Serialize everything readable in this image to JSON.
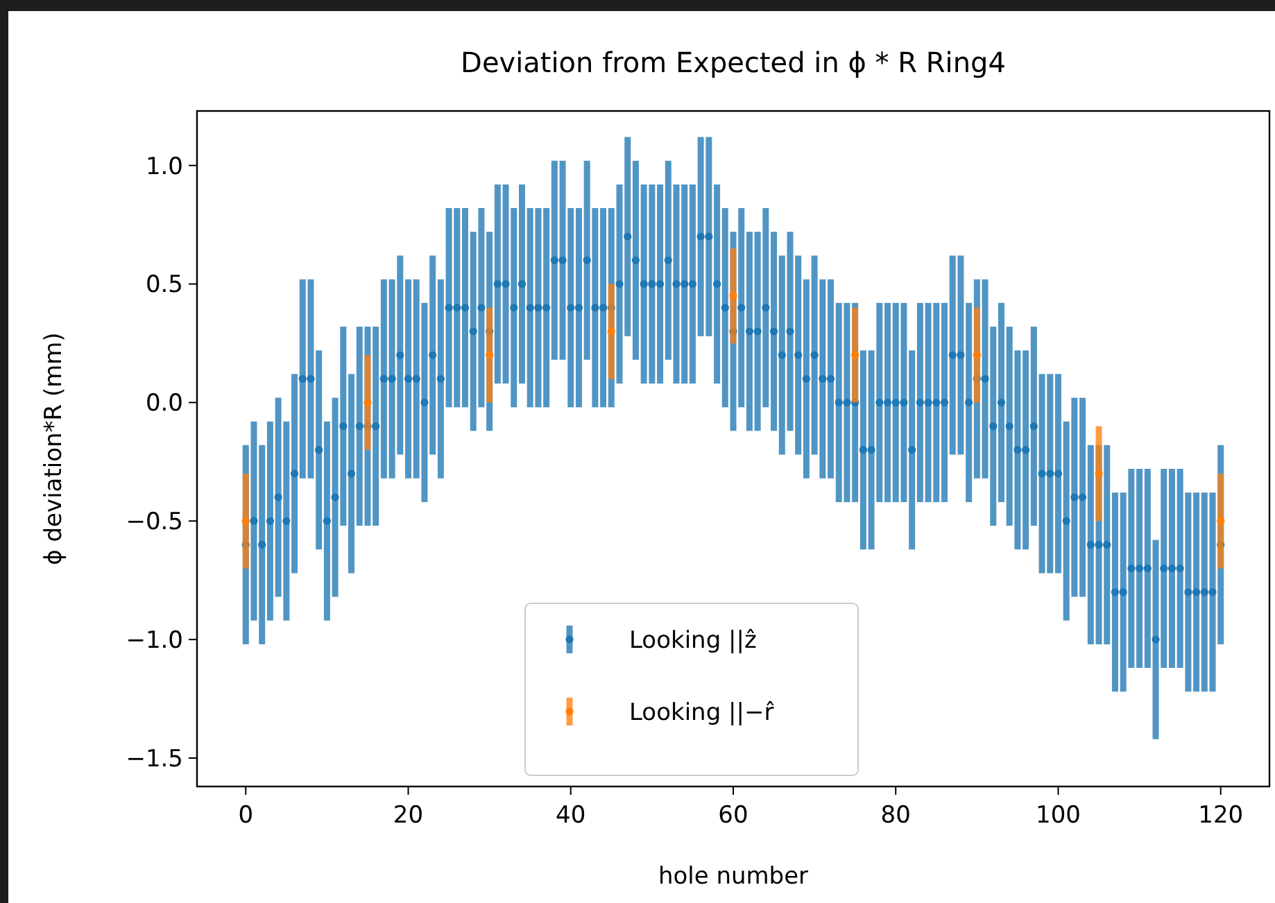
{
  "chart_data": {
    "type": "scatter",
    "title": "Deviation from Expected in ϕ * R Ring4",
    "xlabel": "hole number",
    "ylabel": "ϕ deviation*R (mm)",
    "xlim": [
      -6,
      126
    ],
    "ylim": [
      -1.62,
      1.23
    ],
    "xticks": [
      0,
      20,
      40,
      60,
      80,
      100,
      120
    ],
    "yticks": [
      {
        "value": -1.5,
        "label": "−1.5"
      },
      {
        "value": -1.0,
        "label": "−1.0"
      },
      {
        "value": -0.5,
        "label": "−0.5"
      },
      {
        "value": 0.0,
        "label": "0.0"
      },
      {
        "value": 0.5,
        "label": "0.5"
      },
      {
        "value": 1.0,
        "label": "1.0"
      }
    ],
    "legend": "bottom",
    "marker": "circle",
    "series": [
      {
        "name": "Looking ||ẑ",
        "color": "#1f77b4",
        "x": [
          0,
          1,
          2,
          3,
          4,
          5,
          6,
          7,
          8,
          9,
          10,
          11,
          12,
          13,
          14,
          15,
          16,
          17,
          18,
          19,
          20,
          21,
          22,
          23,
          24,
          25,
          26,
          27,
          28,
          29,
          30,
          31,
          32,
          33,
          34,
          35,
          36,
          37,
          38,
          39,
          40,
          41,
          42,
          43,
          44,
          45,
          46,
          47,
          48,
          49,
          50,
          51,
          52,
          53,
          54,
          55,
          56,
          57,
          58,
          59,
          60,
          61,
          62,
          63,
          64,
          65,
          66,
          67,
          68,
          69,
          70,
          71,
          72,
          73,
          74,
          75,
          76,
          77,
          78,
          79,
          80,
          81,
          82,
          83,
          84,
          85,
          86,
          87,
          88,
          89,
          90,
          91,
          92,
          93,
          94,
          95,
          96,
          97,
          98,
          99,
          100,
          101,
          102,
          103,
          104,
          105,
          106,
          107,
          108,
          109,
          110,
          111,
          112,
          113,
          114,
          115,
          116,
          117,
          118,
          119,
          120
        ],
        "values": [
          -0.6,
          -0.5,
          -0.6,
          -0.5,
          -0.4,
          -0.5,
          -0.3,
          0.1,
          0.1,
          -0.2,
          -0.5,
          -0.4,
          -0.1,
          -0.3,
          -0.1,
          -0.1,
          -0.1,
          0.1,
          0.1,
          0.2,
          0.1,
          0.1,
          0.0,
          0.2,
          0.1,
          0.4,
          0.4,
          0.4,
          0.3,
          0.4,
          0.3,
          0.5,
          0.5,
          0.4,
          0.5,
          0.4,
          0.4,
          0.4,
          0.6,
          0.6,
          0.4,
          0.4,
          0.6,
          0.4,
          0.4,
          0.4,
          0.5,
          0.7,
          0.6,
          0.5,
          0.5,
          0.5,
          0.6,
          0.5,
          0.5,
          0.5,
          0.7,
          0.7,
          0.5,
          0.4,
          0.3,
          0.4,
          0.3,
          0.3,
          0.4,
          0.3,
          0.2,
          0.3,
          0.2,
          0.1,
          0.2,
          0.1,
          0.1,
          0.0,
          0.0,
          0.0,
          -0.2,
          -0.2,
          0.0,
          0.0,
          0.0,
          0.0,
          -0.2,
          0.0,
          0.0,
          0.0,
          0.0,
          0.2,
          0.2,
          0.0,
          0.1,
          0.1,
          -0.1,
          0.0,
          -0.1,
          -0.2,
          -0.2,
          -0.1,
          -0.3,
          -0.3,
          -0.3,
          -0.5,
          -0.4,
          -0.4,
          -0.6,
          -0.6,
          -0.6,
          -0.8,
          -0.8,
          -0.7,
          -0.7,
          -0.7,
          -1.0,
          -0.7,
          -0.7,
          -0.7,
          -0.8,
          -0.8,
          -0.8,
          -0.8,
          -0.6
        ],
        "errors": [
          0.42,
          0.42,
          0.42,
          0.42,
          0.42,
          0.42,
          0.42,
          0.42,
          0.42,
          0.42,
          0.42,
          0.42,
          0.42,
          0.42,
          0.42,
          0.42,
          0.42,
          0.42,
          0.42,
          0.42,
          0.42,
          0.42,
          0.42,
          0.42,
          0.42,
          0.42,
          0.42,
          0.42,
          0.42,
          0.42,
          0.42,
          0.42,
          0.42,
          0.42,
          0.42,
          0.42,
          0.42,
          0.42,
          0.42,
          0.42,
          0.42,
          0.42,
          0.42,
          0.42,
          0.42,
          0.42,
          0.42,
          0.42,
          0.42,
          0.42,
          0.42,
          0.42,
          0.42,
          0.42,
          0.42,
          0.42,
          0.42,
          0.42,
          0.42,
          0.42,
          0.42,
          0.42,
          0.42,
          0.42,
          0.42,
          0.42,
          0.42,
          0.42,
          0.42,
          0.42,
          0.42,
          0.42,
          0.42,
          0.42,
          0.42,
          0.42,
          0.42,
          0.42,
          0.42,
          0.42,
          0.42,
          0.42,
          0.42,
          0.42,
          0.42,
          0.42,
          0.42,
          0.42,
          0.42,
          0.42,
          0.42,
          0.42,
          0.42,
          0.42,
          0.42,
          0.42,
          0.42,
          0.42,
          0.42,
          0.42,
          0.42,
          0.42,
          0.42,
          0.42,
          0.42,
          0.42,
          0.42,
          0.42,
          0.42,
          0.42,
          0.42,
          0.42,
          0.42,
          0.42,
          0.42,
          0.42,
          0.42,
          0.42,
          0.42,
          0.42,
          0.42
        ]
      },
      {
        "name": "Looking ||−r̂",
        "color": "#ff7f0e",
        "x": [
          0,
          15,
          30,
          45,
          60,
          75,
          90,
          105,
          120
        ],
        "values": [
          -0.5,
          0.0,
          0.2,
          0.3,
          0.45,
          0.2,
          0.2,
          -0.3,
          -0.5
        ],
        "errors": [
          0.2,
          0.2,
          0.2,
          0.2,
          0.2,
          0.2,
          0.2,
          0.2,
          0.2
        ]
      }
    ]
  }
}
